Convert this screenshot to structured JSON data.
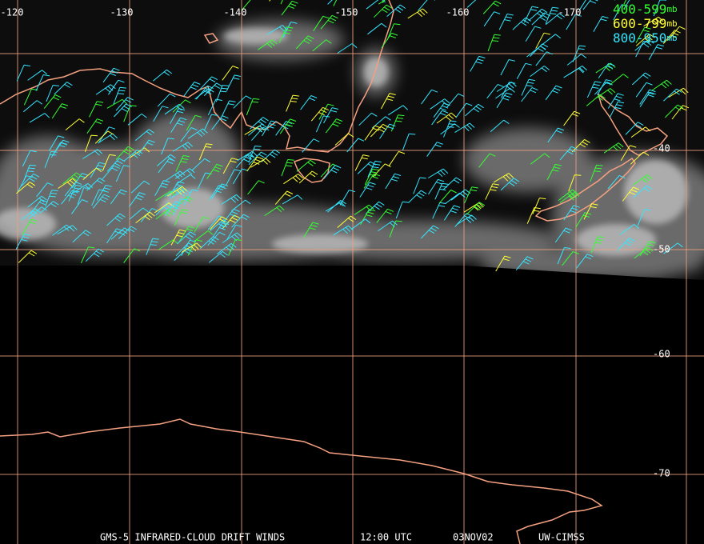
{
  "map": {
    "longitude_labels": [
      "-120",
      "-130",
      "-140",
      "-150",
      "-160",
      "-170"
    ],
    "latitude_labels": [
      "-40",
      "-50",
      "-60",
      "-70"
    ],
    "legend": [
      {
        "range": "400-599",
        "unit": "mb",
        "color": "#33ff33"
      },
      {
        "range": "600-799",
        "unit": "mb",
        "color": "#ffff33"
      },
      {
        "range": "800-950",
        "unit": "mb",
        "color": "#33e6ff"
      }
    ],
    "footer": {
      "product": "GMS-5 INFRARED-CLOUD DRIFT WINDS",
      "time": "12:00 UTC",
      "date": "03NOV02",
      "source": "UW-CIMSS"
    }
  }
}
